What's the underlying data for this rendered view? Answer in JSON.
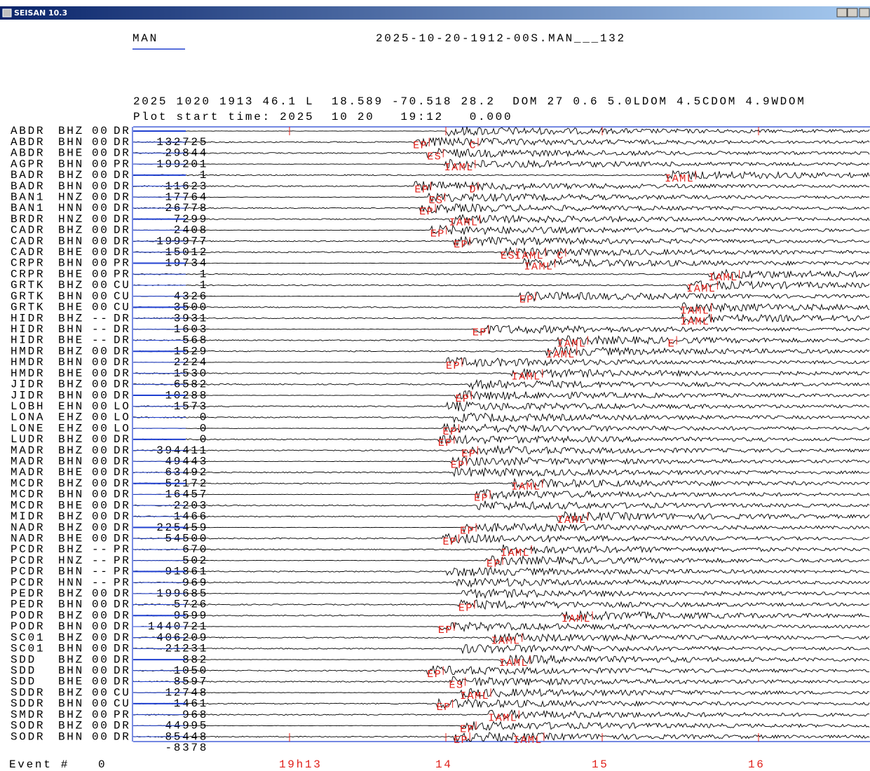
{
  "window": {
    "title": "SEISAN 10.3"
  },
  "header": {
    "mode": "MAN",
    "file": "2025-10-20-1912-00S.MAN___132",
    "hypocenter": "2025 1020 1913 46.1 L  18.589 -70.518 28.2  DOM 27 0.6 5.0LDOM 4.5CDOM 4.9WDOM",
    "plot_start": "Plot start time: 2025  10 20   19:12   0.000"
  },
  "time_axis": {
    "xlim": [
      0,
      4.713
    ],
    "ticks": [
      {
        "value": 1,
        "label": "19h13"
      },
      {
        "value": 2,
        "label": "14"
      },
      {
        "value": 3,
        "label": "15"
      },
      {
        "value": 4,
        "label": "16"
      }
    ]
  },
  "rows": [
    {
      "station": "ABDR",
      "component": "BHZ",
      "location": "00",
      "network": "DR",
      "amplitude": 132725,
      "phases": []
    },
    {
      "station": "ABDR",
      "component": "BHN",
      "location": "00",
      "network": "DR",
      "amplitude": 29844,
      "phases": [
        {
          "label": "EP",
          "time": 1.79
        },
        {
          "label": "C",
          "time": 2.15
        }
      ]
    },
    {
      "station": "ABDR",
      "component": "BHE",
      "location": "00",
      "network": "DR",
      "amplitude": 199201,
      "phases": [
        {
          "label": "ES",
          "time": 1.88
        }
      ]
    },
    {
      "station": "AGPR",
      "component": "BHN",
      "location": "00",
      "network": "PR",
      "amplitude": 1,
      "phases": [
        {
          "label": "IAML",
          "time": 1.99
        }
      ]
    },
    {
      "station": "BADR",
      "component": "BHZ",
      "location": "00",
      "network": "DR",
      "amplitude": 11623,
      "phases": [
        {
          "label": "IAML",
          "time": 3.4
        }
      ]
    },
    {
      "station": "BADR",
      "component": "BHN",
      "location": "00",
      "network": "DR",
      "amplitude": -17764,
      "phases": [
        {
          "label": "EP",
          "time": 1.8
        },
        {
          "label": "D",
          "time": 2.15
        }
      ]
    },
    {
      "station": "BAN1",
      "component": "HNZ",
      "location": "00",
      "network": "DR",
      "amplitude": -26778,
      "phases": [
        {
          "label": "ES",
          "time": 1.89
        }
      ]
    },
    {
      "station": "BAN1",
      "component": "HNN",
      "location": "00",
      "network": "DR",
      "amplitude": 7299,
      "phases": [
        {
          "label": "EP",
          "time": 1.83
        }
      ]
    },
    {
      "station": "BRDR",
      "component": "HNZ",
      "location": "00",
      "network": "DR",
      "amplitude": 2408,
      "phases": [
        {
          "label": "IAML",
          "time": 2.02
        }
      ]
    },
    {
      "station": "CADR",
      "component": "BHZ",
      "location": "00",
      "network": "DR",
      "amplitude": -199977,
      "phases": [
        {
          "label": "EP",
          "time": 1.9
        }
      ]
    },
    {
      "station": "CADR",
      "component": "BHN",
      "location": "00",
      "network": "DR",
      "amplitude": 15012,
      "phases": [
        {
          "label": "EP",
          "time": 2.05
        }
      ]
    },
    {
      "station": "CADR",
      "component": "BHE",
      "location": "00",
      "network": "DR",
      "amplitude": 19734,
      "phases": [
        {
          "label": "ES",
          "time": 2.35
        },
        {
          "label": "IAML",
          "time": 2.44
        },
        {
          "label": "C",
          "time": 2.71
        }
      ]
    },
    {
      "station": "CRPR",
      "component": "BHN",
      "location": "00",
      "network": "PR",
      "amplitude": 1,
      "phases": [
        {
          "label": "IAML",
          "time": 2.5
        }
      ]
    },
    {
      "station": "CRPR",
      "component": "BHE",
      "location": "00",
      "network": "PR",
      "amplitude": 1,
      "phases": [
        {
          "label": "IAML",
          "time": 3.68
        }
      ]
    },
    {
      "station": "GRTK",
      "component": "BHZ",
      "location": "00",
      "network": "CU",
      "amplitude": 4326,
      "phases": [
        {
          "label": "IAML",
          "time": 3.54
        }
      ]
    },
    {
      "station": "GRTK",
      "component": "BHN",
      "location": "00",
      "network": "CU",
      "amplitude": 3500,
      "phases": [
        {
          "label": "EP",
          "time": 2.47
        }
      ]
    },
    {
      "station": "GRTK",
      "component": "BHE",
      "location": "00",
      "network": "CU",
      "amplitude": 3931,
      "phases": [
        {
          "label": "IAML",
          "time": 3.5
        }
      ]
    },
    {
      "station": "HIDR",
      "component": "BHZ",
      "location": "--",
      "network": "DR",
      "amplitude": -1603,
      "phases": [
        {
          "label": "IAML",
          "time": 3.5
        }
      ]
    },
    {
      "station": "HIDR",
      "component": "BHN",
      "location": "--",
      "network": "DR",
      "amplitude": 568,
      "phases": [
        {
          "label": "EP",
          "time": 2.17
        }
      ]
    },
    {
      "station": "HIDR",
      "component": "BHE",
      "location": "--",
      "network": "DR",
      "amplitude": 1529,
      "phases": [
        {
          "label": "IAML",
          "time": 2.71
        },
        {
          "label": "E",
          "time": 3.42
        }
      ]
    },
    {
      "station": "HMDR",
      "component": "BHZ",
      "location": "00",
      "network": "DR",
      "amplitude": 2224,
      "phases": [
        {
          "label": "IAML",
          "time": 2.64
        }
      ]
    },
    {
      "station": "HMDR",
      "component": "BHN",
      "location": "00",
      "network": "DR",
      "amplitude": 1530,
      "phases": [
        {
          "label": "EP",
          "time": 2.0
        }
      ]
    },
    {
      "station": "HMDR",
      "component": "BHE",
      "location": "00",
      "network": "DR",
      "amplitude": 6582,
      "phases": [
        {
          "label": "IAML",
          "time": 2.42
        }
      ]
    },
    {
      "station": "JIDR",
      "component": "BHZ",
      "location": "00",
      "network": "DR",
      "amplitude": -10288,
      "phases": []
    },
    {
      "station": "JIDR",
      "component": "BHN",
      "location": "00",
      "network": "DR",
      "amplitude": 1573,
      "phases": [
        {
          "label": "EP",
          "time": 2.06
        }
      ]
    },
    {
      "station": "LOBH",
      "component": "EHN",
      "location": "00",
      "network": "LO",
      "amplitude": 0,
      "phases": []
    },
    {
      "station": "LONA",
      "component": "EHZ",
      "location": "00",
      "network": "LO",
      "amplitude": 0,
      "phases": []
    },
    {
      "station": "LONE",
      "component": "EHZ",
      "location": "00",
      "network": "LO",
      "amplitude": 0,
      "phases": [
        {
          "label": "EP",
          "time": 1.98
        }
      ]
    },
    {
      "station": "LUDR",
      "component": "BHZ",
      "location": "00",
      "network": "DR",
      "amplitude": -394411,
      "phases": [
        {
          "label": "EP",
          "time": 1.95
        }
      ]
    },
    {
      "station": "MADR",
      "component": "BHZ",
      "location": "00",
      "network": "DR",
      "amplitude": 49443,
      "phases": [
        {
          "label": "EP",
          "time": 2.1
        }
      ]
    },
    {
      "station": "MADR",
      "component": "BHN",
      "location": "00",
      "network": "DR",
      "amplitude": 63492,
      "phases": [
        {
          "label": "EP",
          "time": 2.03
        }
      ]
    },
    {
      "station": "MADR",
      "component": "BHE",
      "location": "00",
      "network": "DR",
      "amplitude": 52172,
      "phases": []
    },
    {
      "station": "MCDR",
      "component": "BHZ",
      "location": "00",
      "network": "DR",
      "amplitude": -16457,
      "phases": [
        {
          "label": "IAML",
          "time": 2.42
        }
      ]
    },
    {
      "station": "MCDR",
      "component": "BHN",
      "location": "00",
      "network": "DR",
      "amplitude": 2203,
      "phases": [
        {
          "label": "EP",
          "time": 2.18
        }
      ]
    },
    {
      "station": "MCDR",
      "component": "BHE",
      "location": "00",
      "network": "DR",
      "amplitude": 1466,
      "phases": []
    },
    {
      "station": "MIDR",
      "component": "BHZ",
      "location": "00",
      "network": "DR",
      "amplitude": 225459,
      "phases": [
        {
          "label": "IAML",
          "time": 2.71
        }
      ]
    },
    {
      "station": "NADR",
      "component": "BHZ",
      "location": "00",
      "network": "DR",
      "amplitude": 54500,
      "phases": [
        {
          "label": "EP",
          "time": 2.09
        }
      ]
    },
    {
      "station": "NADR",
      "component": "BHE",
      "location": "00",
      "network": "DR",
      "amplitude": 670,
      "phases": [
        {
          "label": "EP",
          "time": 1.98
        }
      ]
    },
    {
      "station": "PCDR",
      "component": "BHZ",
      "location": "--",
      "network": "PR",
      "amplitude": -502,
      "phases": [
        {
          "label": "IAML",
          "time": 2.35
        }
      ]
    },
    {
      "station": "PCDR",
      "component": "HNZ",
      "location": "--",
      "network": "PR",
      "amplitude": 91861,
      "phases": [
        {
          "label": "EP",
          "time": 2.26
        }
      ]
    },
    {
      "station": "PCDR",
      "component": "BHN",
      "location": "--",
      "network": "PR",
      "amplitude": 969,
      "phases": []
    },
    {
      "station": "PCDR",
      "component": "HNN",
      "location": "--",
      "network": "PR",
      "amplitude": 199685,
      "phases": []
    },
    {
      "station": "PEDR",
      "component": "BHZ",
      "location": "00",
      "network": "DR",
      "amplitude": 5726,
      "phases": []
    },
    {
      "station": "PEDR",
      "component": "BHN",
      "location": "00",
      "network": "DR",
      "amplitude": 9599,
      "phases": [
        {
          "label": "EP",
          "time": 2.08
        }
      ]
    },
    {
      "station": "PODR",
      "component": "BHZ",
      "location": "00",
      "network": "DR",
      "amplitude": -1440721,
      "phases": [
        {
          "label": "IAML",
          "time": 2.74
        }
      ]
    },
    {
      "station": "PODR",
      "component": "BHN",
      "location": "00",
      "network": "DR",
      "amplitude": 406209,
      "phases": [
        {
          "label": "EP",
          "time": 1.95
        }
      ]
    },
    {
      "station": "SC01",
      "component": "BHZ",
      "location": "00",
      "network": "DR",
      "amplitude": 21231,
      "phases": [
        {
          "label": "IAML",
          "time": 2.29
        }
      ]
    },
    {
      "station": "SC01",
      "component": "BHN",
      "location": "00",
      "network": "DR",
      "amplitude": 882,
      "phases": []
    },
    {
      "station": "SDD",
      "component": "BHZ",
      "location": "00",
      "network": "DR",
      "amplitude": 1050,
      "phases": [
        {
          "label": "IAML",
          "time": 2.34
        }
      ]
    },
    {
      "station": "SDD",
      "component": "BHN",
      "location": "00",
      "network": "DR",
      "amplitude": 8597,
      "phases": [
        {
          "label": "EP",
          "time": 1.88
        }
      ]
    },
    {
      "station": "SDD",
      "component": "BHE",
      "location": "00",
      "network": "DR",
      "amplitude": 12748,
      "phases": [
        {
          "label": "ES",
          "time": 2.02
        }
      ]
    },
    {
      "station": "SDDR",
      "component": "BHZ",
      "location": "00",
      "network": "CU",
      "amplitude": 1461,
      "phases": [
        {
          "label": "IAML",
          "time": 2.09
        }
      ]
    },
    {
      "station": "SDDR",
      "component": "BHN",
      "location": "00",
      "network": "CU",
      "amplitude": 968,
      "phases": [
        {
          "label": "EP",
          "time": 1.94
        }
      ]
    },
    {
      "station": "SMDR",
      "component": "BHZ",
      "location": "00",
      "network": "PR",
      "amplitude": 44995,
      "phases": [
        {
          "label": "IAML",
          "time": 2.27
        }
      ]
    },
    {
      "station": "SODR",
      "component": "BHZ",
      "location": "00",
      "network": "DR",
      "amplitude": 85448,
      "phases": [
        {
          "label": "EP",
          "time": 2.09
        }
      ]
    },
    {
      "station": "SODR",
      "component": "BHN",
      "location": "00",
      "network": "DR",
      "amplitude": -8378,
      "phases": [
        {
          "label": "EP",
          "time": 2.05
        },
        {
          "label": "IAML",
          "time": 2.43
        }
      ]
    }
  ],
  "footer": {
    "label": "Event #",
    "event": 0
  }
}
